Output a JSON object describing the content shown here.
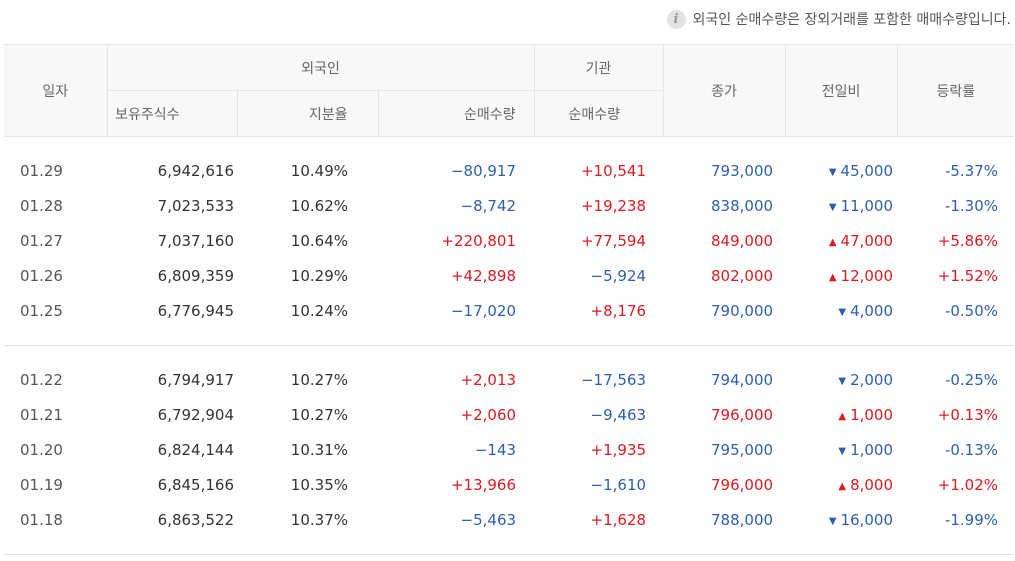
{
  "notice": {
    "text": "외국인 순매수량은 장외거래를 포함한 매매수량입니다."
  },
  "header": {
    "date": "일자",
    "foreign": "외국인",
    "institution": "기관",
    "close": "종가",
    "change": "전일비",
    "rate": "등락률",
    "holdings": "보유주식수",
    "ratio": "지분율",
    "foreign_net": "순매수량",
    "inst_net": "순매수량"
  },
  "colors": {
    "up": "#e0191f",
    "down": "#2d5faf"
  },
  "groups": [
    [
      {
        "date": "01.29",
        "holdings": "6,942,616",
        "ratio": "10.49%",
        "foreign_net": "−80,917",
        "inst_net": "+10,541",
        "close": "793,000",
        "change_dir": "down",
        "change": "45,000",
        "rate": "-5.37%"
      },
      {
        "date": "01.28",
        "holdings": "7,023,533",
        "ratio": "10.62%",
        "foreign_net": "−8,742",
        "inst_net": "+19,238",
        "close": "838,000",
        "change_dir": "down",
        "change": "11,000",
        "rate": "-1.30%"
      },
      {
        "date": "01.27",
        "holdings": "7,037,160",
        "ratio": "10.64%",
        "foreign_net": "+220,801",
        "inst_net": "+77,594",
        "close": "849,000",
        "change_dir": "up",
        "change": "47,000",
        "rate": "+5.86%"
      },
      {
        "date": "01.26",
        "holdings": "6,809,359",
        "ratio": "10.29%",
        "foreign_net": "+42,898",
        "inst_net": "−5,924",
        "close": "802,000",
        "change_dir": "up",
        "change": "12,000",
        "rate": "+1.52%"
      },
      {
        "date": "01.25",
        "holdings": "6,776,945",
        "ratio": "10.24%",
        "foreign_net": "−17,020",
        "inst_net": "+8,176",
        "close": "790,000",
        "change_dir": "down",
        "change": "4,000",
        "rate": "-0.50%"
      }
    ],
    [
      {
        "date": "01.22",
        "holdings": "6,794,917",
        "ratio": "10.27%",
        "foreign_net": "+2,013",
        "inst_net": "−17,563",
        "close": "794,000",
        "change_dir": "down",
        "change": "2,000",
        "rate": "-0.25%"
      },
      {
        "date": "01.21",
        "holdings": "6,792,904",
        "ratio": "10.27%",
        "foreign_net": "+2,060",
        "inst_net": "−9,463",
        "close": "796,000",
        "change_dir": "up",
        "change": "1,000",
        "rate": "+0.13%"
      },
      {
        "date": "01.20",
        "holdings": "6,824,144",
        "ratio": "10.31%",
        "foreign_net": "−143",
        "inst_net": "+1,935",
        "close": "795,000",
        "change_dir": "down",
        "change": "1,000",
        "rate": "-0.13%"
      },
      {
        "date": "01.19",
        "holdings": "6,845,166",
        "ratio": "10.35%",
        "foreign_net": "+13,966",
        "inst_net": "−1,610",
        "close": "796,000",
        "change_dir": "up",
        "change": "8,000",
        "rate": "+1.02%"
      },
      {
        "date": "01.18",
        "holdings": "6,863,522",
        "ratio": "10.37%",
        "foreign_net": "−5,463",
        "inst_net": "+1,628",
        "close": "788,000",
        "change_dir": "down",
        "change": "16,000",
        "rate": "-1.99%"
      }
    ]
  ]
}
